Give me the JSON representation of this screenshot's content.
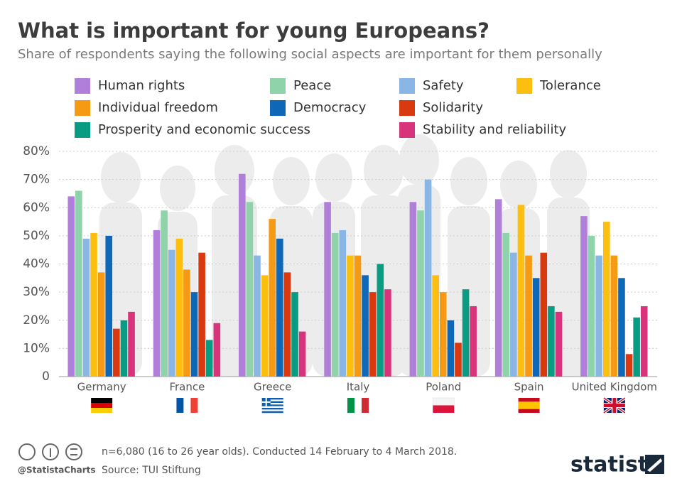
{
  "chart_data": {
    "type": "bar",
    "title": "What is important for young Europeans?",
    "subtitle": "Share of respondents saying the following social aspects are important for them personally",
    "categories": [
      "Germany",
      "France",
      "Greece",
      "Italy",
      "Poland",
      "Spain",
      "United Kingdom"
    ],
    "series": [
      {
        "name": "Human rights",
        "color": "#b07fd9",
        "values": [
          64,
          52,
          72,
          62,
          62,
          63,
          57
        ]
      },
      {
        "name": "Peace",
        "color": "#8ed3aa",
        "values": [
          66,
          59,
          62,
          51,
          59,
          51,
          50
        ]
      },
      {
        "name": "Safety",
        "color": "#8ab6e6",
        "values": [
          49,
          45,
          43,
          52,
          70,
          44,
          43
        ]
      },
      {
        "name": "Tolerance",
        "color": "#fcbf0f",
        "values": [
          51,
          49,
          36,
          43,
          36,
          61,
          55
        ]
      },
      {
        "name": "Individual freedom",
        "color": "#f59a12",
        "values": [
          37,
          38,
          56,
          43,
          30,
          43,
          43
        ]
      },
      {
        "name": "Democracy",
        "color": "#0f67b8",
        "values": [
          50,
          30,
          49,
          36,
          20,
          35,
          35
        ]
      },
      {
        "name": "Solidarity",
        "color": "#d9390f",
        "values": [
          17,
          44,
          37,
          30,
          12,
          44,
          8
        ]
      },
      {
        "name": "Prosperity and economic success",
        "color": "#0a9c82",
        "values": [
          20,
          13,
          30,
          40,
          31,
          25,
          21
        ]
      },
      {
        "name": "Stability and reliability",
        "color": "#d8347b",
        "values": [
          23,
          19,
          16,
          31,
          25,
          23,
          25
        ]
      }
    ],
    "ylim": [
      0,
      80
    ],
    "yticks": [
      0,
      {
        "value": 10,
        "label": "10%"
      },
      {
        "value": 20,
        "label": "20%"
      },
      {
        "value": 30,
        "label": "30%"
      },
      {
        "value": 40,
        "label": "40%"
      },
      {
        "value": 50,
        "label": "50%"
      },
      {
        "value": 60,
        "label": "60%"
      },
      {
        "value": 70,
        "label": "70%"
      },
      {
        "value": 80,
        "label": "80%"
      }
    ],
    "grid": true
  },
  "footer": {
    "note": "n=6,080 (16 to 26 year olds). Conducted 14 February to 4 March 2018.",
    "source": "Source: TUI Stiftung",
    "handle": "@StatistaCharts",
    "brand": "statista"
  }
}
